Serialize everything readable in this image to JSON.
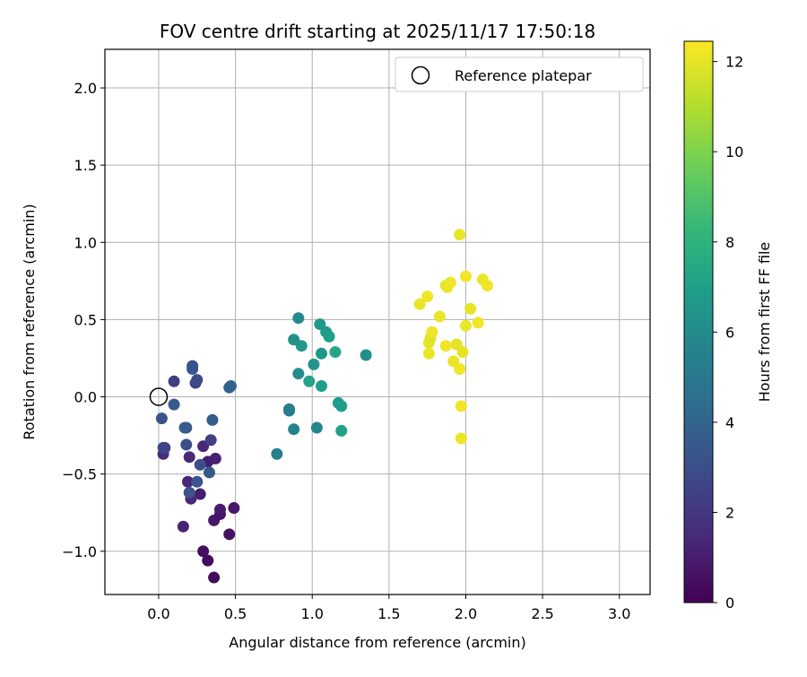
{
  "chart_data": {
    "type": "scatter",
    "title": "FOV centre drift starting at 2025/11/17 17:50:18",
    "xlabel": "Angular distance from reference (arcmin)",
    "ylabel": "Rotation from reference (arcmin)",
    "xlim": [
      -0.35,
      3.2
    ],
    "ylim": [
      -1.28,
      2.25
    ],
    "xticks": [
      0.0,
      0.5,
      1.0,
      1.5,
      2.0,
      2.5,
      3.0
    ],
    "xtick_labels": [
      "0.0",
      "0.5",
      "1.0",
      "1.5",
      "2.0",
      "2.5",
      "3.0"
    ],
    "yticks": [
      -1.0,
      -0.5,
      0.0,
      0.5,
      1.0,
      1.5,
      2.0
    ],
    "ytick_labels": [
      "−1.0",
      "−0.5",
      "0.0",
      "0.5",
      "1.0",
      "1.5",
      "2.0"
    ],
    "grid": true,
    "legend": {
      "position": "top-right",
      "entries": [
        {
          "label": "Reference platepar",
          "marker": "open-circle",
          "color": "#000000"
        }
      ]
    },
    "reference_point": {
      "x": 0.0,
      "y": 0.0
    },
    "colorbar": {
      "label": "Hours from first FF file",
      "range": [
        0,
        12.45
      ],
      "ticks": [
        0,
        2,
        4,
        6,
        8,
        10,
        12
      ],
      "tick_labels": [
        "0",
        "2",
        "4",
        "6",
        "8",
        "10",
        "12"
      ],
      "colormap": "viridis",
      "colormap_stops": [
        "#440154",
        "#482878",
        "#3e4989",
        "#31688e",
        "#26828e",
        "#1f9e89",
        "#35b779",
        "#6ece58",
        "#b5de2b",
        "#fde725"
      ]
    },
    "series": [
      {
        "color_by": "hours",
        "points": [
          {
            "x": 0.36,
            "y": -1.17,
            "c": 0.3
          },
          {
            "x": 0.32,
            "y": -1.06,
            "c": 0.4
          },
          {
            "x": 0.29,
            "y": -1.0,
            "c": 0.5
          },
          {
            "x": 0.46,
            "y": -0.89,
            "c": 0.6
          },
          {
            "x": 0.36,
            "y": -0.8,
            "c": 0.8
          },
          {
            "x": 0.4,
            "y": -0.76,
            "c": 0.7
          },
          {
            "x": 0.4,
            "y": -0.73,
            "c": 0.9
          },
          {
            "x": 0.49,
            "y": -0.72,
            "c": 0.8
          },
          {
            "x": 0.16,
            "y": -0.84,
            "c": 1.2
          },
          {
            "x": 0.27,
            "y": -0.63,
            "c": 1.0
          },
          {
            "x": 0.21,
            "y": -0.66,
            "c": 1.4
          },
          {
            "x": 0.19,
            "y": -0.55,
            "c": 1.3
          },
          {
            "x": 0.37,
            "y": -0.4,
            "c": 1.1
          },
          {
            "x": 0.32,
            "y": -0.42,
            "c": 1.0
          },
          {
            "x": 0.2,
            "y": -0.39,
            "c": 1.5
          },
          {
            "x": 0.29,
            "y": -0.32,
            "c": 1.3
          },
          {
            "x": 0.03,
            "y": -0.37,
            "c": 1.6
          },
          {
            "x": 0.34,
            "y": -0.28,
            "c": 2.4
          },
          {
            "x": 0.33,
            "y": -0.49,
            "c": 3.5
          },
          {
            "x": 0.27,
            "y": -0.44,
            "c": 3.0
          },
          {
            "x": 0.25,
            "y": -0.55,
            "c": 3.3
          },
          {
            "x": 0.2,
            "y": -0.62,
            "c": 3.2
          },
          {
            "x": 0.03,
            "y": -0.33,
            "c": 2.8
          },
          {
            "x": 0.04,
            "y": -0.33,
            "c": 2.5
          },
          {
            "x": 0.18,
            "y": -0.31,
            "c": 3.1
          },
          {
            "x": 0.18,
            "y": -0.2,
            "c": 3.4
          },
          {
            "x": 0.17,
            "y": -0.2,
            "c": 3.6
          },
          {
            "x": 0.02,
            "y": -0.14,
            "c": 3.3
          },
          {
            "x": 0.35,
            "y": -0.15,
            "c": 3.7
          },
          {
            "x": 0.1,
            "y": -0.05,
            "c": 3.5
          },
          {
            "x": 0.1,
            "y": 0.1,
            "c": 2.3
          },
          {
            "x": 0.24,
            "y": 0.09,
            "c": 2.6
          },
          {
            "x": 0.25,
            "y": 0.11,
            "c": 2.9
          },
          {
            "x": 0.22,
            "y": 0.18,
            "c": 3.4
          },
          {
            "x": 0.22,
            "y": 0.2,
            "c": 3.2
          },
          {
            "x": 0.46,
            "y": 0.06,
            "c": 3.8
          },
          {
            "x": 0.47,
            "y": 0.07,
            "c": 3.9
          },
          {
            "x": 0.77,
            "y": -0.37,
            "c": 5.4
          },
          {
            "x": 0.85,
            "y": -0.08,
            "c": 5.2
          },
          {
            "x": 0.85,
            "y": -0.09,
            "c": 5.3
          },
          {
            "x": 0.88,
            "y": -0.21,
            "c": 5.6
          },
          {
            "x": 1.03,
            "y": -0.2,
            "c": 5.7
          },
          {
            "x": 1.19,
            "y": -0.22,
            "c": 7.1
          },
          {
            "x": 1.17,
            "y": -0.04,
            "c": 6.8
          },
          {
            "x": 1.19,
            "y": -0.06,
            "c": 6.9
          },
          {
            "x": 0.88,
            "y": 0.37,
            "c": 6.3
          },
          {
            "x": 0.91,
            "y": 0.51,
            "c": 6.0
          },
          {
            "x": 0.93,
            "y": 0.33,
            "c": 6.6
          },
          {
            "x": 0.91,
            "y": 0.15,
            "c": 6.1
          },
          {
            "x": 0.98,
            "y": 0.1,
            "c": 7.2
          },
          {
            "x": 1.01,
            "y": 0.21,
            "c": 6.4
          },
          {
            "x": 1.05,
            "y": 0.47,
            "c": 6.7
          },
          {
            "x": 1.06,
            "y": 0.28,
            "c": 6.5
          },
          {
            "x": 1.06,
            "y": 0.07,
            "c": 6.9
          },
          {
            "x": 1.09,
            "y": 0.42,
            "c": 6.8
          },
          {
            "x": 1.11,
            "y": 0.39,
            "c": 7.0
          },
          {
            "x": 1.15,
            "y": 0.29,
            "c": 7.3
          },
          {
            "x": 1.35,
            "y": 0.27,
            "c": 6.2
          },
          {
            "x": 1.7,
            "y": 0.6,
            "c": 12.1
          },
          {
            "x": 1.75,
            "y": 0.65,
            "c": 12.2
          },
          {
            "x": 1.76,
            "y": 0.35,
            "c": 12.0
          },
          {
            "x": 1.76,
            "y": 0.28,
            "c": 12.1
          },
          {
            "x": 1.77,
            "y": 0.38,
            "c": 11.9
          },
          {
            "x": 1.78,
            "y": 0.42,
            "c": 12.2
          },
          {
            "x": 1.83,
            "y": 0.52,
            "c": 12.1
          },
          {
            "x": 1.87,
            "y": 0.72,
            "c": 12.0
          },
          {
            "x": 1.87,
            "y": 0.33,
            "c": 12.2
          },
          {
            "x": 1.88,
            "y": 0.71,
            "c": 12.1
          },
          {
            "x": 1.9,
            "y": 0.74,
            "c": 12.2
          },
          {
            "x": 1.92,
            "y": 0.23,
            "c": 12.1
          },
          {
            "x": 1.94,
            "y": 0.34,
            "c": 12.0
          },
          {
            "x": 1.96,
            "y": 0.18,
            "c": 12.2
          },
          {
            "x": 1.96,
            "y": 1.05,
            "c": 12.1
          },
          {
            "x": 1.97,
            "y": -0.06,
            "c": 12.2
          },
          {
            "x": 1.97,
            "y": -0.27,
            "c": 12.1
          },
          {
            "x": 1.98,
            "y": 0.29,
            "c": 12.0
          },
          {
            "x": 2.0,
            "y": 0.78,
            "c": 12.2
          },
          {
            "x": 2.0,
            "y": 0.46,
            "c": 12.1
          },
          {
            "x": 2.03,
            "y": 0.57,
            "c": 12.0
          },
          {
            "x": 2.08,
            "y": 0.48,
            "c": 12.2
          },
          {
            "x": 2.11,
            "y": 0.76,
            "c": 12.1
          },
          {
            "x": 2.14,
            "y": 0.72,
            "c": 12.2
          }
        ]
      }
    ]
  }
}
